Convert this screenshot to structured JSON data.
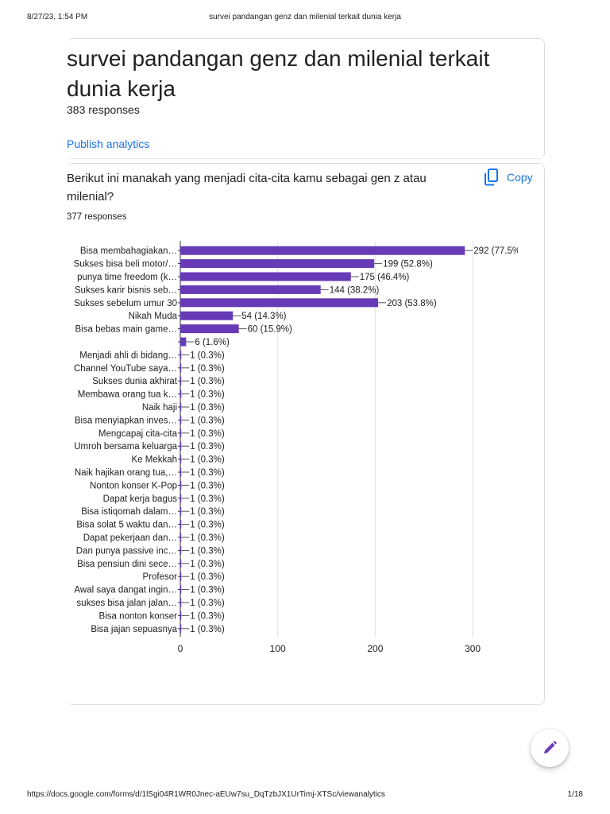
{
  "print_header": {
    "date": "8/27/23, 1:54 PM",
    "title": "survei pandangan genz dan milenial terkait dunia kerja"
  },
  "form": {
    "title": "survei pandangan genz dan milenial terkait dunia kerja",
    "responses": "383 responses",
    "publish_label": "Publish analytics"
  },
  "question": {
    "text": "Berikut ini manakah yang menjadi cita-cita kamu sebagai gen z atau milenial?",
    "responses": "377 responses",
    "copy_label": "Copy",
    "copy_icon": "copy-icon"
  },
  "fab": {
    "icon": "pencil-icon"
  },
  "print_footer": {
    "url": "https://docs.google.com/forms/d/1lSgi04R1WR0Jnec-aEUw7su_DqTzbJX1UrTimj-XTSc/viewanalytics",
    "page": "1/18"
  },
  "colors": {
    "bar": "#673ab7",
    "link": "#1a73e8"
  },
  "chart_data": {
    "type": "bar",
    "orientation": "horizontal",
    "categories": [
      "Bisa membahagiakan…",
      "Sukses bisa beli motor/…",
      "punya time freedom (k…",
      "Sukses karir bisnis seb…",
      "Sukses sebelum umur 30",
      "Nikah Muda",
      "Bisa bebas main game…",
      "",
      "Menjadi ahli di bidang…",
      "Channel YouTube saya…",
      "Sukses dunia akhirat",
      "Membawa orang tua k…",
      "Naik haji",
      "Bisa menyiapkan inves…",
      "Mengcapaj cita-cita",
      "Umroh bersama keluarga",
      "Ke Mekkah",
      "Naik hajikan orang tua,…",
      "Nonton konser K-Pop",
      "Dapat kerja bagus",
      "Bisa istiqomah dalam…",
      "Bisa solat 5 waktu dan…",
      "Dapat pekerjaan dan…",
      "Dan punya passive inc…",
      "Bisa pensiun dini sece…",
      "Profesor",
      "Awal saya dangat ingin…",
      "sukses bisa jalan jalan…",
      "Bisa nonton konser",
      "Bisa jajan sepuasnya"
    ],
    "values": [
      292,
      199,
      175,
      144,
      203,
      54,
      60,
      6,
      1,
      1,
      1,
      1,
      1,
      1,
      1,
      1,
      1,
      1,
      1,
      1,
      1,
      1,
      1,
      1,
      1,
      1,
      1,
      1,
      1,
      1
    ],
    "data_labels": [
      "292 (77.5%)",
      "199 (52.8%)",
      "175 (46.4%)",
      "144 (38.2%)",
      "203 (53.8%)",
      "54 (14.3%)",
      "60 (15.9%)",
      "6 (1.6%)",
      "1 (0.3%)",
      "1 (0.3%)",
      "1 (0.3%)",
      "1 (0.3%)",
      "1 (0.3%)",
      "1 (0.3%)",
      "1 (0.3%)",
      "1 (0.3%)",
      "1 (0.3%)",
      "1 (0.3%)",
      "1 (0.3%)",
      "1 (0.3%)",
      "1 (0.3%)",
      "1 (0.3%)",
      "1 (0.3%)",
      "1 (0.3%)",
      "1 (0.3%)",
      "1 (0.3%)",
      "1 (0.3%)",
      "1 (0.3%)",
      "1 (0.3%)",
      "1 (0.3%)"
    ],
    "x_ticks": [
      0,
      100,
      200,
      300
    ],
    "xlim": [
      0,
      300
    ],
    "grid": true,
    "legend": "none",
    "title": "",
    "xlabel": "",
    "ylabel": ""
  }
}
